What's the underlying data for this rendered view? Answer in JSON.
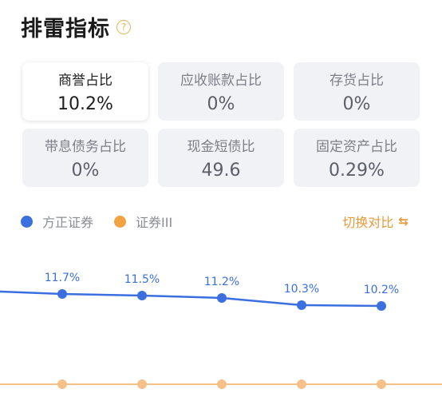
{
  "title": "排雷指标",
  "metrics": [
    {
      "label": "商誉占比",
      "value": "10.2%",
      "active": true
    },
    {
      "label": "应收账款占比",
      "value": "0%",
      "active": false
    },
    {
      "label": "存货占比",
      "value": "0%",
      "active": false
    },
    {
      "label": "带息债务占比",
      "value": "0%",
      "active": false
    },
    {
      "label": "现金短债比",
      "value": "49.6",
      "active": false
    },
    {
      "label": "固定资产占比",
      "value": "0.29%",
      "active": false
    }
  ],
  "legend": {
    "items": [
      {
        "label": "方正证券",
        "color": "#3b6fe0"
      },
      {
        "label": "证券III",
        "color": "#f2a243"
      }
    ],
    "compare_label": "切换对比",
    "compare_color": "#e69a38"
  },
  "chart_data": {
    "type": "line",
    "series": [
      {
        "name": "方正证券",
        "color": "#3b6fe0",
        "values": [
          11.7,
          11.5,
          11.2,
          10.3,
          10.2
        ],
        "labels": [
          "11.7%",
          "11.5%",
          "11.2%",
          "10.3%",
          "10.2%"
        ]
      },
      {
        "name": "证券III",
        "color": "#f6c089",
        "values": [
          0.3,
          0.3,
          0.3,
          0.3,
          0.3
        ]
      }
    ]
  }
}
